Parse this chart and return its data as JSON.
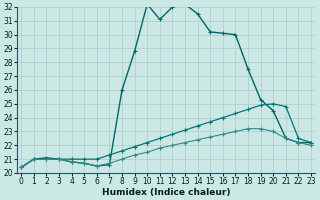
{
  "xlabel": "Humidex (Indice chaleur)",
  "bg_color": "#cce8e4",
  "grid_color": "#aacccc",
  "xlim": [
    0,
    23
  ],
  "ylim": [
    20,
    32
  ],
  "xticks": [
    0,
    1,
    2,
    3,
    4,
    5,
    6,
    7,
    8,
    9,
    10,
    11,
    12,
    13,
    14,
    15,
    16,
    17,
    18,
    19,
    20,
    21,
    22,
    23
  ],
  "yticks": [
    20,
    21,
    22,
    23,
    24,
    25,
    26,
    27,
    28,
    29,
    30,
    31,
    32
  ],
  "series": [
    {
      "x": [
        0,
        1,
        2,
        3,
        4,
        5,
        6,
        7,
        8,
        9,
        10,
        11,
        12,
        13,
        14,
        15,
        16,
        17,
        18,
        19,
        20,
        21,
        22,
        23
      ],
      "y": [
        20.4,
        21.0,
        21.1,
        21.0,
        20.8,
        20.7,
        20.5,
        20.6,
        26.0,
        28.8,
        32.2,
        31.1,
        32.0,
        32.2,
        31.5,
        30.2,
        30.1,
        30.0,
        27.5,
        25.3,
        24.5,
        22.5,
        22.2,
        22.2
      ],
      "color": "#006666",
      "lw": 1.0,
      "ms": 2.2
    },
    {
      "x": [
        0,
        1,
        2,
        3,
        4,
        5,
        6,
        7,
        8,
        9,
        10,
        11,
        12,
        13,
        14,
        15,
        16,
        17,
        18,
        19,
        20,
        21,
        22,
        23
      ],
      "y": [
        20.4,
        21.0,
        21.0,
        21.0,
        21.0,
        21.0,
        21.0,
        21.3,
        21.6,
        21.9,
        22.2,
        22.5,
        22.8,
        23.1,
        23.4,
        23.7,
        24.0,
        24.3,
        24.6,
        24.9,
        25.0,
        24.8,
        22.5,
        22.2
      ],
      "color": "#007777",
      "lw": 0.9,
      "ms": 1.8
    },
    {
      "x": [
        0,
        1,
        2,
        3,
        4,
        5,
        6,
        7,
        8,
        9,
        10,
        11,
        12,
        13,
        14,
        15,
        16,
        17,
        18,
        19,
        20,
        21,
        22,
        23
      ],
      "y": [
        20.4,
        21.0,
        21.0,
        21.0,
        20.8,
        20.7,
        20.5,
        20.7,
        21.0,
        21.3,
        21.5,
        21.8,
        22.0,
        22.2,
        22.4,
        22.6,
        22.8,
        23.0,
        23.2,
        23.2,
        23.0,
        22.5,
        22.2,
        22.0
      ],
      "color": "#338888",
      "lw": 0.8,
      "ms": 1.6
    }
  ],
  "tick_fontsize": 5.5,
  "label_fontsize": 6.5,
  "spine_color": "#006666"
}
